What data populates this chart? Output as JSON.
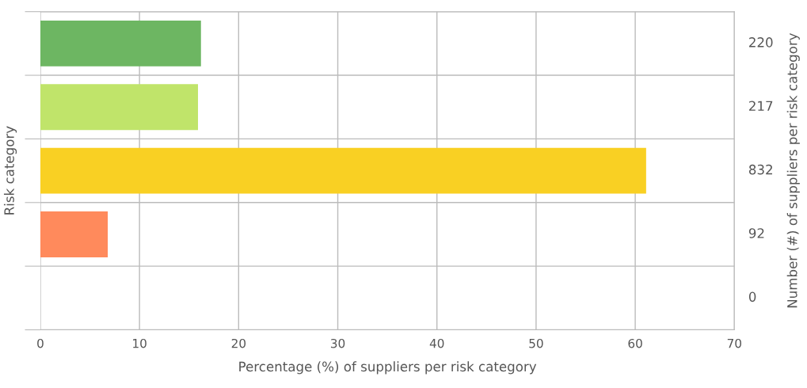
{
  "chart_data": {
    "type": "bar",
    "orientation": "horizontal",
    "categories": [
      "220",
      "217",
      "832",
      "92",
      "0"
    ],
    "values": [
      16.2,
      15.9,
      61.1,
      6.8,
      0
    ],
    "colors": [
      "#6db662",
      "#c0e46a",
      "#f9d023",
      "#ff8a5c",
      "#cccccc"
    ],
    "xlim": [
      0,
      70
    ],
    "xticks": [
      0,
      10,
      20,
      30,
      40,
      50,
      60,
      70
    ],
    "xlabel": "Percentage (%) of suppliers per risk category",
    "ylabel": "Risk category",
    "y2label": "Number (#) of suppliers per risk category",
    "grid": true,
    "legend": false
  }
}
